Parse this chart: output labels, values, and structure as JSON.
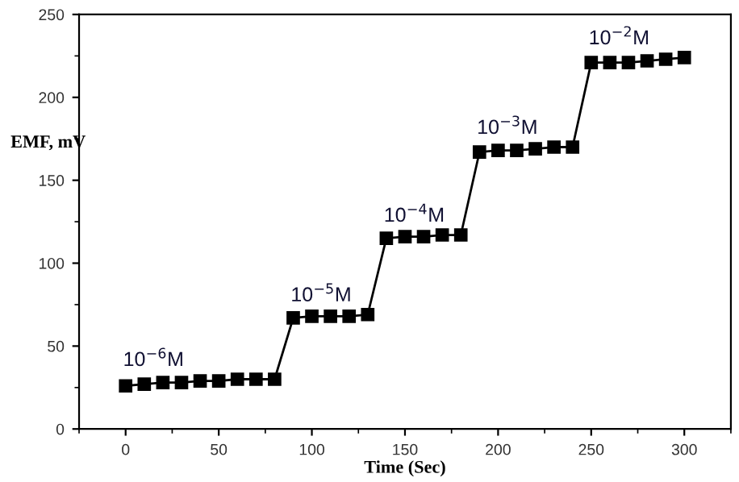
{
  "chart_data": {
    "type": "line",
    "xlabel": "Time (Sec)",
    "ylabel": "EMF, mV",
    "x": [
      0,
      10,
      20,
      30,
      40,
      50,
      60,
      70,
      80,
      90,
      100,
      110,
      120,
      130,
      140,
      150,
      160,
      170,
      180,
      190,
      200,
      210,
      220,
      230,
      240,
      250,
      260,
      270,
      280,
      290,
      300
    ],
    "series": [
      {
        "color": "#000000",
        "values": [
          26,
          27,
          28,
          28,
          29,
          29,
          30,
          30,
          30,
          67,
          68,
          68,
          68,
          69,
          115,
          116,
          116,
          117,
          117,
          167,
          168,
          168,
          169,
          170,
          170,
          221,
          221,
          221,
          222,
          223,
          224
        ]
      }
    ],
    "marker": "square",
    "line_style": "solid",
    "xlim": [
      -25,
      325
    ],
    "xticks": [
      0,
      50,
      100,
      150,
      200,
      250,
      300
    ],
    "ylim": [
      0,
      250
    ],
    "yticks": [
      0,
      50,
      100,
      150,
      200,
      250
    ],
    "annotations": [
      "10$^{−6}$M",
      "10$^{−5}$M",
      "10$^{−4}$M",
      "10$^{−3}$M",
      "10$^{−2}$M"
    ]
  }
}
